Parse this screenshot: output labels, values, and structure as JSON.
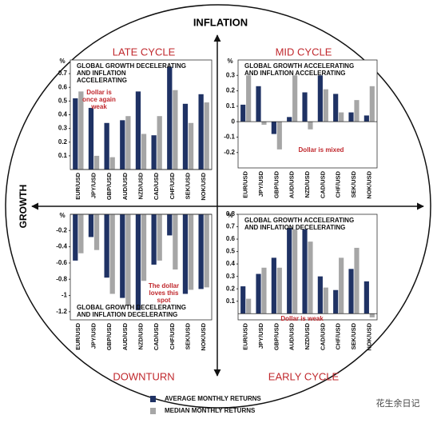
{
  "axis_labels": {
    "vertical": "INFLATION",
    "horizontal": "GROWTH"
  },
  "watermark": "花生余日记",
  "chart_data": [
    {
      "type": "bar",
      "title": "LATE CYCLE",
      "ylabel": "%",
      "subtitle": [
        "GLOBAL GROWTH DECELERATING",
        "AND INFLATION",
        "ACCELERATING"
      ],
      "annotation": [
        "Dollar is",
        "once again",
        "weak"
      ],
      "categories": [
        "EUR/USD",
        "JPY/USD",
        "GBP/USD",
        "AUD/USD",
        "NZD/USD",
        "CAD/USD",
        "CHF/USD",
        "SEK/USD",
        "NOK/USD"
      ],
      "series": [
        {
          "name": "AVERAGE MONTHLY RETURNS",
          "color": "#1f3264",
          "values": [
            0.52,
            0.45,
            0.34,
            0.36,
            0.57,
            0.25,
            0.75,
            0.48,
            0.55
          ]
        },
        {
          "name": "MEDIAN MONTHLY RETURNS",
          "color": "#a6a6a6",
          "values": [
            0.57,
            0.1,
            0.09,
            0.39,
            0.26,
            0.39,
            0.58,
            0.34,
            0.49
          ]
        }
      ],
      "ylim": [
        0,
        0.8
      ],
      "yticks": [
        0.1,
        0.2,
        0.3,
        0.4,
        0.5,
        0.6,
        0.7
      ]
    },
    {
      "type": "bar",
      "title": "MID CYCLE",
      "ylabel": "%",
      "subtitle": [
        "GLOBAL GROWTH ACCELERATING",
        "AND INFLATION ACCELERATING"
      ],
      "annotation": [
        "Dollar is mixed"
      ],
      "categories": [
        "EUR/USD",
        "JPY/USD",
        "GBP/USD",
        "AUD/USD",
        "NZD/USD",
        "CAD/USD",
        "CHF/USD",
        "SEK/USD",
        "NOK/USD"
      ],
      "series": [
        {
          "name": "AVERAGE MONTHLY RETURNS",
          "color": "#1f3264",
          "values": [
            0.11,
            0.23,
            -0.08,
            0.03,
            0.19,
            0.3,
            0.18,
            0.06,
            0.04
          ]
        },
        {
          "name": "MEDIAN MONTHLY RETURNS",
          "color": "#a6a6a6",
          "values": [
            0.3,
            -0.02,
            -0.18,
            0.3,
            -0.05,
            0.21,
            0.06,
            0.14,
            0.23
          ]
        }
      ],
      "ylim": [
        -0.3,
        0.4
      ],
      "yticks": [
        0.3,
        0.2,
        0.1,
        0,
        -0.1,
        -0.2
      ]
    },
    {
      "type": "bar",
      "title": "DOWNTURN",
      "ylabel": "%",
      "subtitle": [
        "GLOBAL GROWTH DECELERATING",
        "AND INFLATION DECELERATING"
      ],
      "annotation": [
        "The dollar",
        "loves this",
        "spot"
      ],
      "categories": [
        "EUR/USD",
        "JPY/USD",
        "GBP/USD",
        "AUD/USD",
        "NZD/USD",
        "CAD/USD",
        "CHF/USD",
        "SEK/USD",
        "NOK/USD"
      ],
      "series": [
        {
          "name": "AVERAGE MONTHLY RETURNS",
          "color": "#1f3264",
          "values": [
            -0.57,
            -0.28,
            -0.78,
            -1.03,
            -1.18,
            -0.62,
            -0.26,
            -0.98,
            -0.92
          ]
        },
        {
          "name": "MEDIAN MONTHLY RETURNS",
          "color": "#a6a6a6",
          "values": [
            -0.48,
            -0.44,
            -0.98,
            -1.13,
            -0.82,
            -0.57,
            -0.68,
            -0.93,
            -0.9
          ]
        }
      ],
      "ylim": [
        -1.3,
        0
      ],
      "yticks": [
        -0.2,
        -0.4,
        -0.6,
        -0.8,
        -1.0,
        -1.2
      ]
    },
    {
      "type": "bar",
      "title": "EARLY CYCLE",
      "ylabel": "%",
      "subtitle": [
        "GLOBAL GROWTH ACCELERATING",
        "AND INFLATION DECELERATING"
      ],
      "annotation": [
        "Dollar is weak"
      ],
      "categories": [
        "EUR/USD",
        "JPY/USD",
        "GBP/USD",
        "AUD/USD",
        "NZD/USD",
        "CAD/USD",
        "CHF/USD",
        "SEK/USD",
        "NOK/USD"
      ],
      "series": [
        {
          "name": "AVERAGE MONTHLY RETURNS",
          "color": "#1f3264",
          "values": [
            0.22,
            0.32,
            0.45,
            0.69,
            0.68,
            0.3,
            0.19,
            0.36,
            0.26
          ]
        },
        {
          "name": "MEDIAN MONTHLY RETURNS",
          "color": "#a6a6a6",
          "values": [
            0.12,
            0.37,
            0.37,
            0.68,
            0.58,
            0.21,
            0.45,
            0.53,
            -0.03
          ]
        }
      ],
      "ylim": [
        -0.05,
        0.8
      ],
      "yticks": [
        0.8,
        0.7,
        0.6,
        0.5,
        0.4,
        0.3,
        0.2,
        0.1
      ]
    }
  ]
}
